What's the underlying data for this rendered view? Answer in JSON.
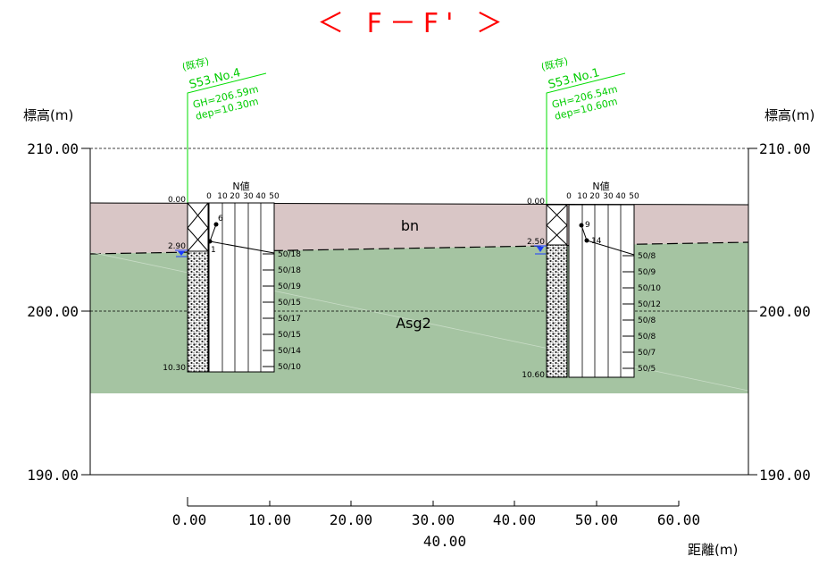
{
  "title": "＜ F－F' ＞",
  "axis": {
    "ylabel": "標高(m)",
    "xlabel": "距離(m)",
    "y_ticks": [
      "210.00",
      "200.00",
      "190.00"
    ],
    "x_ticks": [
      "0.00",
      "10.00",
      "20.00",
      "30.00",
      "40.00",
      "50.00",
      "60.00"
    ],
    "x_total": "40.00"
  },
  "layers": [
    {
      "name": "bn",
      "color": "#d9c6c6"
    },
    {
      "name": "Asg2",
      "color": "#a5c4a2"
    }
  ],
  "nvalue_header": "N値",
  "nvalue_scale": [
    "0",
    "10",
    "20",
    "30",
    "40",
    "50"
  ],
  "boreholes": [
    {
      "status": "(既存)",
      "id": "S53.No.4",
      "gh": "GH=206.59m",
      "dep": "dep=10.30m",
      "top_depth": "0.00",
      "bottom_depth": "10.30",
      "water_depth": "2.90",
      "n_values": [
        "6",
        "1"
      ],
      "blow_counts": [
        "50/18",
        "50/18",
        "50/19",
        "50/15",
        "50/17",
        "50/15",
        "50/14",
        "50/10"
      ]
    },
    {
      "status": "(既存)",
      "id": "S53.No.1",
      "gh": "GH=206.54m",
      "dep": "dep=10.60m",
      "top_depth": "0.00",
      "bottom_depth": "10.60",
      "water_depth": "2.50",
      "n_values": [
        "9",
        "14"
      ],
      "blow_counts": [
        "50/8",
        "50/9",
        "50/10",
        "50/12",
        "50/8",
        "50/8",
        "50/7",
        "50/5"
      ]
    }
  ],
  "colors": {
    "title": "#ff0000",
    "borehole_label": "#00cc00",
    "water": "#1a3cff",
    "bn_layer": "#d9c6c6",
    "asg2_layer": "#a5c4a2"
  }
}
